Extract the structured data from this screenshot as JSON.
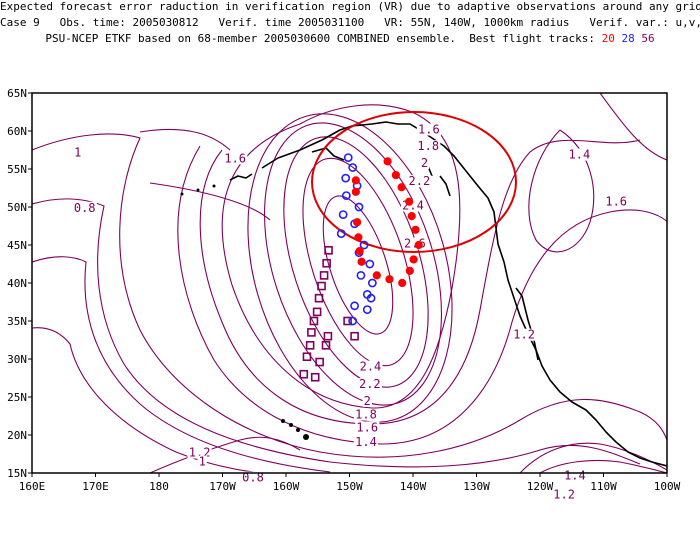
{
  "header": {
    "line1": "Expected forecast error raduction in verification region (VR) due to adaptive observations around any grid point.",
    "line2": "Case 9   Obs. time: 2005030812   Verif. time 2005031100   VR: 55N, 140W, 1000km radius   Verif. var.: u,v,T",
    "line3_prefix": "PSU-NCEP ETKF based on 68-member 2005030600 COMBINED ensemble.  Best flight tracks: ",
    "track_20": "20",
    "track_28": "28",
    "track_56": "56"
  },
  "map": {
    "lon_range": [
      160,
      260
    ],
    "lat_range": [
      15,
      65
    ],
    "lon_ticks": [
      {
        "lon": 160,
        "label": "160E"
      },
      {
        "lon": 170,
        "label": "170E"
      },
      {
        "lon": 180,
        "label": "180"
      },
      {
        "lon": 190,
        "label": "170W"
      },
      {
        "lon": 200,
        "label": "160W"
      },
      {
        "lon": 210,
        "label": "150W"
      },
      {
        "lon": 220,
        "label": "140W"
      },
      {
        "lon": 230,
        "label": "130W"
      },
      {
        "lon": 240,
        "label": "120W"
      },
      {
        "lon": 250,
        "label": "110W"
      },
      {
        "lon": 260,
        "label": "100W"
      }
    ],
    "lat_ticks": [
      {
        "lat": 15,
        "label": "15N"
      },
      {
        "lat": 20,
        "label": "20N"
      },
      {
        "lat": 25,
        "label": "25N"
      },
      {
        "lat": 30,
        "label": "30N"
      },
      {
        "lat": 35,
        "label": "35N"
      },
      {
        "lat": 40,
        "label": "40N"
      },
      {
        "lat": 45,
        "label": "45N"
      },
      {
        "lat": 50,
        "label": "50N"
      },
      {
        "lat": 55,
        "label": "55N"
      },
      {
        "lat": 60,
        "label": "60N"
      },
      {
        "lat": 65,
        "label": "65N"
      }
    ],
    "colors": {
      "contour": "#800060",
      "track_20": "#ff0000",
      "track_28": "#2020ff",
      "track_56": "#800060",
      "vr": "#dd0000"
    },
    "verification_region": {
      "center_lon": 220,
      "center_lat": 55,
      "radius_km": 1000
    },
    "contour_labels": [
      {
        "text": "1.6",
        "lon": 222.5,
        "lat": 59.8
      },
      {
        "text": "1.8",
        "lon": 222.4,
        "lat": 57.6
      },
      {
        "text": "2",
        "lon": 221.8,
        "lat": 55.4
      },
      {
        "text": "2.2",
        "lon": 221,
        "lat": 53.0
      },
      {
        "text": "2.4",
        "lon": 220,
        "lat": 49.8
      },
      {
        "text": "2.6",
        "lon": 220.3,
        "lat": 44.8
      },
      {
        "text": "1.6",
        "lon": 192,
        "lat": 56.0
      },
      {
        "text": "1",
        "lon": 167.2,
        "lat": 56.8
      },
      {
        "text": "0.8",
        "lon": 168.3,
        "lat": 49.5
      },
      {
        "text": "1.4",
        "lon": 246.2,
        "lat": 56.5
      },
      {
        "text": "1.6",
        "lon": 252,
        "lat": 50.3
      },
      {
        "text": "1.2",
        "lon": 237.5,
        "lat": 32.8
      },
      {
        "text": "2.4",
        "lon": 213.3,
        "lat": 28.6
      },
      {
        "text": "2.2",
        "lon": 213.2,
        "lat": 26.3
      },
      {
        "text": "2",
        "lon": 212.8,
        "lat": 24.1
      },
      {
        "text": "1.8",
        "lon": 212.6,
        "lat": 22.3
      },
      {
        "text": "1.6",
        "lon": 212.8,
        "lat": 20.6
      },
      {
        "text": "1.4",
        "lon": 212.6,
        "lat": 18.7
      },
      {
        "text": "1.2",
        "lon": 186.4,
        "lat": 17.3
      },
      {
        "text": "1",
        "lon": 186.8,
        "lat": 16.1
      },
      {
        "text": "0.8",
        "lon": 194.8,
        "lat": 14.0
      },
      {
        "text": "1.4",
        "lon": 245.5,
        "lat": 14.3
      },
      {
        "text": "1.2",
        "lon": 243.8,
        "lat": 11.8
      }
    ],
    "track_20": [
      {
        "lon": 216.0,
        "lat": 56.0
      },
      {
        "lon": 217.3,
        "lat": 54.2
      },
      {
        "lon": 218.2,
        "lat": 52.6
      },
      {
        "lon": 219.4,
        "lat": 50.7
      },
      {
        "lon": 219.8,
        "lat": 48.8
      },
      {
        "lon": 220.4,
        "lat": 47.0
      },
      {
        "lon": 220.9,
        "lat": 45.0
      },
      {
        "lon": 220.1,
        "lat": 43.1
      },
      {
        "lon": 219.5,
        "lat": 41.6
      },
      {
        "lon": 218.3,
        "lat": 40.0
      },
      {
        "lon": 216.3,
        "lat": 40.5
      },
      {
        "lon": 214.3,
        "lat": 41.0
      },
      {
        "lon": 211.0,
        "lat": 53.5
      },
      {
        "lon": 211.0,
        "lat": 52.0
      },
      {
        "lon": 211.2,
        "lat": 48.0
      },
      {
        "lon": 211.4,
        "lat": 46.0
      },
      {
        "lon": 211.6,
        "lat": 44.2
      },
      {
        "lon": 211.9,
        "lat": 42.8
      }
    ],
    "track_28": [
      {
        "lon": 209.8,
        "lat": 56.5
      },
      {
        "lon": 210.5,
        "lat": 55.2
      },
      {
        "lon": 209.4,
        "lat": 53.8
      },
      {
        "lon": 211.2,
        "lat": 52.8
      },
      {
        "lon": 209.5,
        "lat": 51.5
      },
      {
        "lon": 211.5,
        "lat": 50.0
      },
      {
        "lon": 209.0,
        "lat": 49.0
      },
      {
        "lon": 210.8,
        "lat": 47.8
      },
      {
        "lon": 208.7,
        "lat": 46.5
      },
      {
        "lon": 212.3,
        "lat": 45.0
      },
      {
        "lon": 211.5,
        "lat": 44.0
      },
      {
        "lon": 213.2,
        "lat": 42.5
      },
      {
        "lon": 211.8,
        "lat": 41.0
      },
      {
        "lon": 213.6,
        "lat": 40.0
      },
      {
        "lon": 212.8,
        "lat": 38.5
      },
      {
        "lon": 210.8,
        "lat": 37.0
      },
      {
        "lon": 212.8,
        "lat": 36.5
      },
      {
        "lon": 210.5,
        "lat": 35.0
      },
      {
        "lon": 213.4,
        "lat": 38.0
      }
    ],
    "track_56": [
      {
        "lon": 206.7,
        "lat": 44.3
      },
      {
        "lon": 206.4,
        "lat": 42.6
      },
      {
        "lon": 206.0,
        "lat": 41.0
      },
      {
        "lon": 205.6,
        "lat": 39.6
      },
      {
        "lon": 205.2,
        "lat": 38.0
      },
      {
        "lon": 204.9,
        "lat": 36.2
      },
      {
        "lon": 204.4,
        "lat": 35.0
      },
      {
        "lon": 204.0,
        "lat": 33.5
      },
      {
        "lon": 206.6,
        "lat": 33.0
      },
      {
        "lon": 203.8,
        "lat": 31.8
      },
      {
        "lon": 206.3,
        "lat": 31.8
      },
      {
        "lon": 203.3,
        "lat": 30.3
      },
      {
        "lon": 205.3,
        "lat": 29.6
      },
      {
        "lon": 202.8,
        "lat": 28.0
      },
      {
        "lon": 204.6,
        "lat": 27.6
      },
      {
        "lon": 209.7,
        "lat": 35.0
      },
      {
        "lon": 210.8,
        "lat": 33.0
      }
    ]
  }
}
